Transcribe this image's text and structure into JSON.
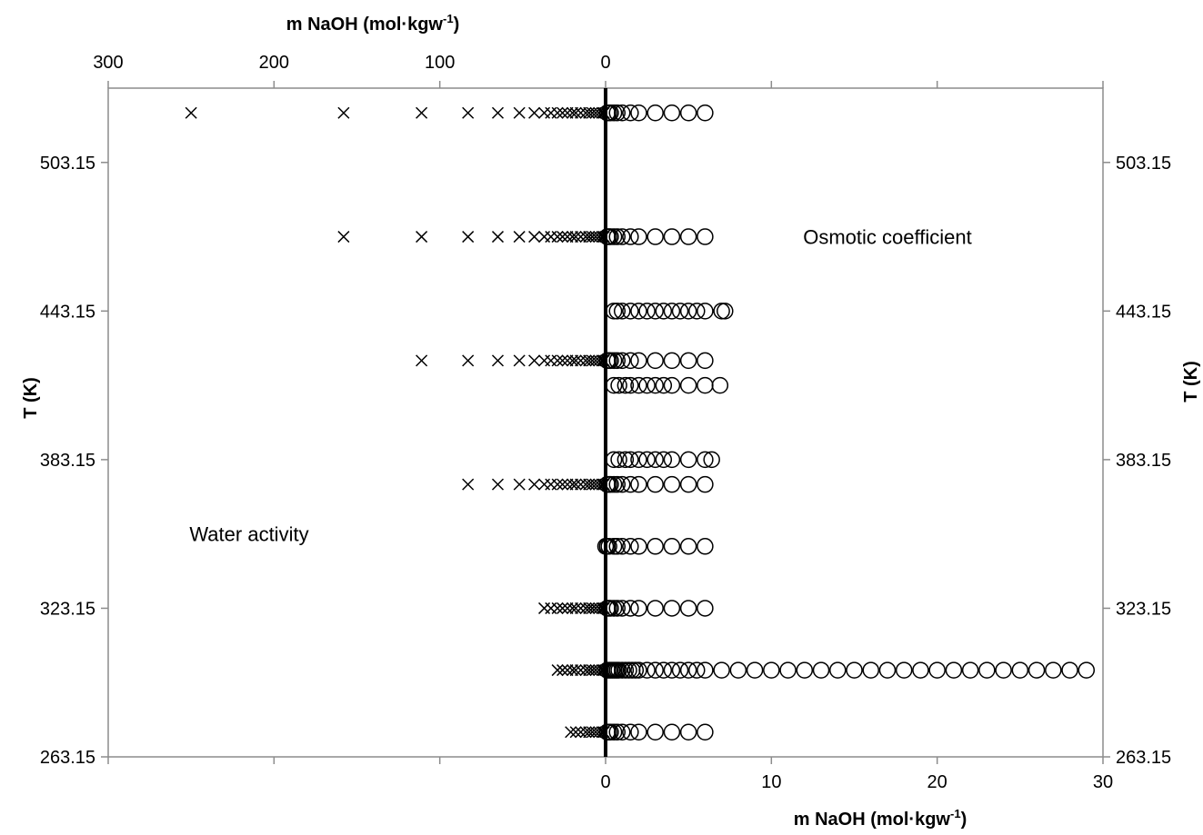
{
  "chart_data": {
    "type": "scatter",
    "title": "",
    "axes": {
      "bottom": {
        "label_main": "m NaOH (mol·kgw",
        "label_sup": "-1",
        "label_end": ")",
        "range": [
          -30,
          30
        ],
        "ticks": [
          0,
          10,
          20,
          30
        ],
        "tick_labels": [
          "0",
          "10",
          "20",
          "30"
        ]
      },
      "top": {
        "label_main": "m NaOH (mol·kgw",
        "label_sup": "-1",
        "label_end": ")",
        "range": [
          300,
          -300
        ],
        "ticks": [
          300,
          200,
          100,
          0
        ],
        "tick_labels": [
          "300",
          "200",
          "100",
          "0"
        ]
      },
      "left": {
        "label": "T (K)",
        "range": [
          263.15,
          533.15
        ],
        "ticks": [
          263.15,
          323.15,
          383.15,
          443.15,
          503.15
        ],
        "tick_labels": [
          "263.15",
          "323.15",
          "383.15",
          "443.15",
          "503.15"
        ]
      },
      "right": {
        "label": "T (K)",
        "range": [
          263.15,
          533.15
        ],
        "ticks": [
          263.15,
          323.15,
          383.15,
          443.15,
          503.15
        ],
        "tick_labels": [
          "263.15",
          "323.15",
          "383.15",
          "443.15",
          "503.15"
        ]
      }
    },
    "annotations": [
      {
        "text": "Osmotic coefficient",
        "x": 17,
        "y": 473.15
      },
      {
        "text": "Water activity",
        "x": -21.5,
        "y": 353.15
      }
    ],
    "series": [
      {
        "marker": "circle",
        "axis": "bottom",
        "rows": [
          {
            "T": 523.15,
            "m": [
              0.1,
              0.2,
              0.3,
              0.5,
              0.7,
              1.0,
              1.5,
              2.0,
              3.0,
              4.0,
              5.0,
              6.0
            ]
          },
          {
            "T": 473.15,
            "m": [
              0.1,
              0.2,
              0.3,
              0.5,
              0.7,
              1.0,
              1.5,
              2.0,
              3.0,
              4.0,
              5.0,
              6.0
            ]
          },
          {
            "T": 443.15,
            "m": [
              0.5,
              0.7,
              1.0,
              1.5,
              2.0,
              2.5,
              3.0,
              3.5,
              4.0,
              4.5,
              5.0,
              5.5,
              6.0,
              7.0,
              7.2
            ]
          },
          {
            "T": 423.15,
            "m": [
              0.1,
              0.2,
              0.3,
              0.5,
              0.7,
              1.0,
              1.5,
              2.0,
              3.0,
              4.0,
              5.0,
              6.0
            ]
          },
          {
            "T": 413.15,
            "m": [
              0.5,
              0.8,
              1.2,
              1.5,
              2.0,
              2.5,
              3.0,
              3.5,
              4.0,
              5.0,
              6.0,
              6.9
            ]
          },
          {
            "T": 383.15,
            "m": [
              0.5,
              0.8,
              1.2,
              1.5,
              2.0,
              2.5,
              3.0,
              3.5,
              4.0,
              5.0,
              6.0,
              6.4
            ]
          },
          {
            "T": 373.15,
            "m": [
              0.1,
              0.2,
              0.3,
              0.5,
              0.7,
              1.0,
              1.5,
              2.0,
              3.0,
              4.0,
              5.0,
              6.0
            ]
          },
          {
            "T": 348.15,
            "m": [
              0.0,
              0.1,
              0.2,
              0.5,
              0.7,
              1.0,
              1.5,
              2.0,
              3.0,
              4.0,
              5.0,
              6.0
            ]
          },
          {
            "T": 323.15,
            "m": [
              0.1,
              0.2,
              0.3,
              0.5,
              0.7,
              1.0,
              1.5,
              2.0,
              3.0,
              4.0,
              5.0,
              6.0
            ]
          },
          {
            "T": 298.15,
            "m": [
              0.1,
              0.2,
              0.3,
              0.4,
              0.5,
              0.6,
              0.7,
              0.8,
              1.0,
              1.2,
              1.4,
              1.6,
              1.8,
              2.0,
              2.5,
              3.0,
              3.5,
              4.0,
              4.5,
              5.0,
              5.5,
              6.0,
              7.0,
              8.0,
              9.0,
              10.0,
              11.0,
              12.0,
              13.0,
              14.0,
              15.0,
              16.0,
              17.0,
              18.0,
              19.0,
              20.0,
              21.0,
              22.0,
              23.0,
              24.0,
              25.0,
              26.0,
              27.0,
              28.0,
              29.0
            ]
          },
          {
            "T": 273.15,
            "m": [
              0.1,
              0.2,
              0.3,
              0.5,
              0.7,
              1.0,
              1.5,
              2.0,
              3.0,
              4.0,
              5.0,
              6.0
            ]
          }
        ]
      },
      {
        "marker": "cross",
        "axis": "top",
        "rows": [
          {
            "T": 523.15,
            "m": [
              250,
              158,
              111,
              83,
              65,
              52,
              43,
              37,
              33,
              29,
              26,
              23,
              20,
              18,
              15,
              12,
              10,
              8,
              6,
              4,
              2,
              1
            ]
          },
          {
            "T": 473.15,
            "m": [
              158,
              111,
              83,
              65,
              52,
              43,
              37,
              33,
              29,
              26,
              23,
              20,
              18,
              15,
              12,
              10,
              8,
              6,
              4,
              2,
              1
            ]
          },
          {
            "T": 423.15,
            "m": [
              111,
              83,
              65,
              52,
              43,
              37,
              33,
              29,
              26,
              23,
              20,
              18,
              15,
              12,
              10,
              8,
              6,
              4,
              2,
              1
            ]
          },
          {
            "T": 373.15,
            "m": [
              83,
              65,
              52,
              43,
              37,
              33,
              29,
              26,
              23,
              20,
              18,
              15,
              12,
              10,
              8,
              6,
              4,
              2,
              1
            ]
          },
          {
            "T": 323.15,
            "m": [
              37,
              33,
              29,
              26,
              23,
              20,
              18,
              15,
              12,
              10,
              8,
              6,
              4,
              2,
              1
            ]
          },
          {
            "T": 298.15,
            "m": [
              29,
              26,
              23,
              20,
              18,
              15,
              12,
              10,
              8,
              6,
              4,
              2,
              1
            ]
          },
          {
            "T": 273.15,
            "m": [
              21,
              18,
              15,
              12,
              10,
              8,
              6,
              4,
              2,
              1
            ]
          }
        ]
      }
    ]
  }
}
